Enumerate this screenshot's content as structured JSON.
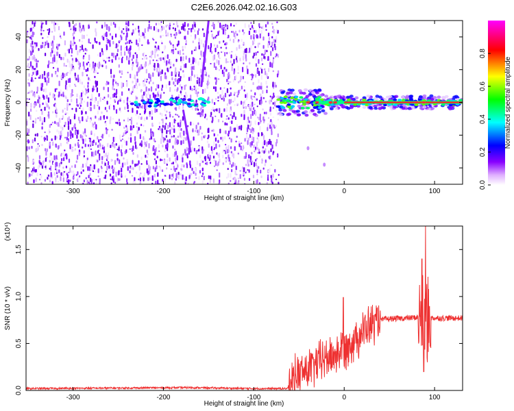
{
  "title": "C2E6.2026.042.02.16.G03",
  "chart_data": [
    {
      "type": "heatmap",
      "xlabel": "Height of straight line (km)",
      "ylabel": "Frequency (Hz)",
      "xlim": [
        -352,
        131
      ],
      "ylim": [
        -50,
        50
      ],
      "xticks": [
        -300,
        -200,
        -100,
        0,
        100
      ],
      "yticks": [
        -40,
        -20,
        0,
        20,
        40
      ],
      "colorbar": {
        "label": "Normalized spectral amplitude",
        "range": [
          0,
          1
        ],
        "ticks": [
          "0.0",
          "0.2",
          "0.4",
          "0.6",
          "0.8"
        ],
        "colormap": [
          "#ffffff",
          "#8800ff",
          "#0000ff",
          "#00ffff",
          "#00ff00",
          "#ffff00",
          "#ff0000",
          "#ff00ff"
        ]
      },
      "features": {
        "noise_region_x": [
          -352,
          -73
        ],
        "signal_region_x": [
          -73,
          131
        ],
        "carrier_frequency": 0,
        "streaks": [
          {
            "x": [
              -170,
              -178
            ],
            "y": [
              -30,
              -5
            ]
          },
          {
            "x": [
              -158,
              -150
            ],
            "y": [
              10,
              50
            ]
          }
        ],
        "blobs": [
          {
            "x": -40,
            "y": -28
          },
          {
            "x": -22,
            "y": -38
          }
        ]
      }
    },
    {
      "type": "line",
      "xlabel": "Height of straight line (km)",
      "ylabel": "SNR (10 * v/v)",
      "yscale_label": "(x10⁴)",
      "xlim": [
        -352,
        131
      ],
      "ylim": [
        0,
        1.75
      ],
      "xticks": [
        -300,
        -200,
        -100,
        0,
        100
      ],
      "yticks": [
        "0.0",
        "0.5",
        "1.0",
        "1.5"
      ],
      "color": "#ee3030",
      "series_keypoints": [
        {
          "x": -352,
          "y": 0.02
        },
        {
          "x": -170,
          "y": 0.03
        },
        {
          "x": -100,
          "y": 0.02
        },
        {
          "x": -62,
          "y": 0.02
        },
        {
          "x": -55,
          "y": 0.15
        },
        {
          "x": -40,
          "y": 0.22
        },
        {
          "x": -25,
          "y": 0.32
        },
        {
          "x": -10,
          "y": 0.38
        },
        {
          "x": 0,
          "y": 0.45
        },
        {
          "x": 15,
          "y": 0.58
        },
        {
          "x": 30,
          "y": 0.7
        },
        {
          "x": 45,
          "y": 0.76
        },
        {
          "x": 70,
          "y": 0.77
        },
        {
          "x": 85,
          "y": 0.78
        },
        {
          "x": 100,
          "y": 0.77
        },
        {
          "x": 131,
          "y": 0.77
        }
      ],
      "spikes": [
        {
          "x": -1,
          "y": 0.99
        },
        {
          "x": 90,
          "y": 1.75
        },
        {
          "x": 86,
          "y": 1.4
        },
        {
          "x": 88,
          "y": 0.2
        },
        {
          "x": 92,
          "y": 0.3
        }
      ]
    }
  ]
}
